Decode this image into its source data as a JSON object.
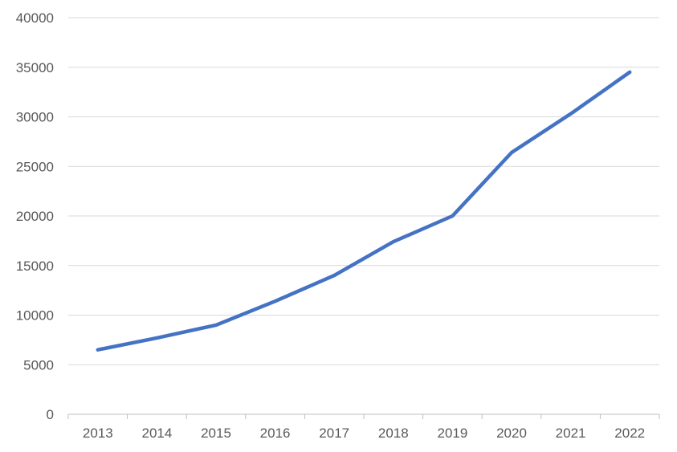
{
  "chart_data": {
    "type": "line",
    "title": "",
    "xlabel": "",
    "ylabel": "",
    "categories": [
      "2013",
      "2014",
      "2015",
      "2016",
      "2017",
      "2018",
      "2019",
      "2020",
      "2021",
      "2022"
    ],
    "series": [
      {
        "values": [
          6500,
          7700,
          9000,
          11400,
          14000,
          17400,
          20000,
          26400,
          30300,
          34500
        ],
        "color": "#4472c4"
      }
    ],
    "ylim": [
      0,
      40000
    ],
    "y_ticks": [
      0,
      5000,
      10000,
      15000,
      20000,
      25000,
      30000,
      35000,
      40000
    ],
    "y_tick_labels": [
      "0",
      "5000",
      "10000",
      "15000",
      "20000",
      "25000",
      "30000",
      "35000",
      "40000"
    ],
    "grid": true,
    "legend": "none"
  }
}
